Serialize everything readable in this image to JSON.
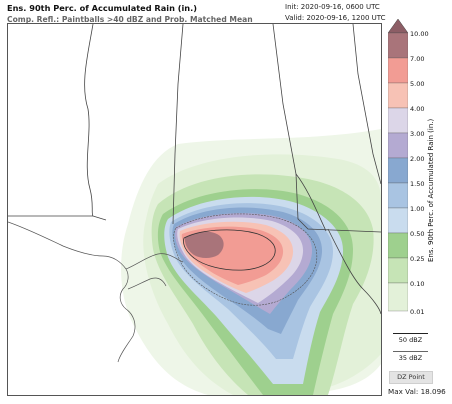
{
  "header": {
    "title": "Ens. 90th Perc. of Accumulated Rain (in.)",
    "subtitle": "Comp. Refl.: Paintballs >40 dBZ and Prob. Matched Mean",
    "init": "Init: 2020-09-16, 0600 UTC",
    "valid": "Valid: 2020-09-16, 1200 UTC"
  },
  "colorbar": {
    "title": "Ens. 90th Perc. of Accumulated Rain (in.)",
    "ticks": [
      "10.00",
      "7.00",
      "5.00",
      "4.00",
      "3.00",
      "2.00",
      "1.50",
      "1.00",
      "0.50",
      "0.25",
      "0.10",
      "0.01"
    ],
    "colors": [
      "#a9747a",
      "#f29c94",
      "#f7c2b5",
      "#dcd6e8",
      "#b4aad2",
      "#88a8d0",
      "#a9c4e2",
      "#c9dcee",
      "#9ed08e",
      "#c6e4b6",
      "#e3f1d9"
    ],
    "top_color": "#8c5d65"
  },
  "legend": {
    "line1_label": "50 dBZ",
    "line2_label": "35 dBZ",
    "dz_button": "DZ Point",
    "max_val": "Max Val: 18.096"
  }
}
